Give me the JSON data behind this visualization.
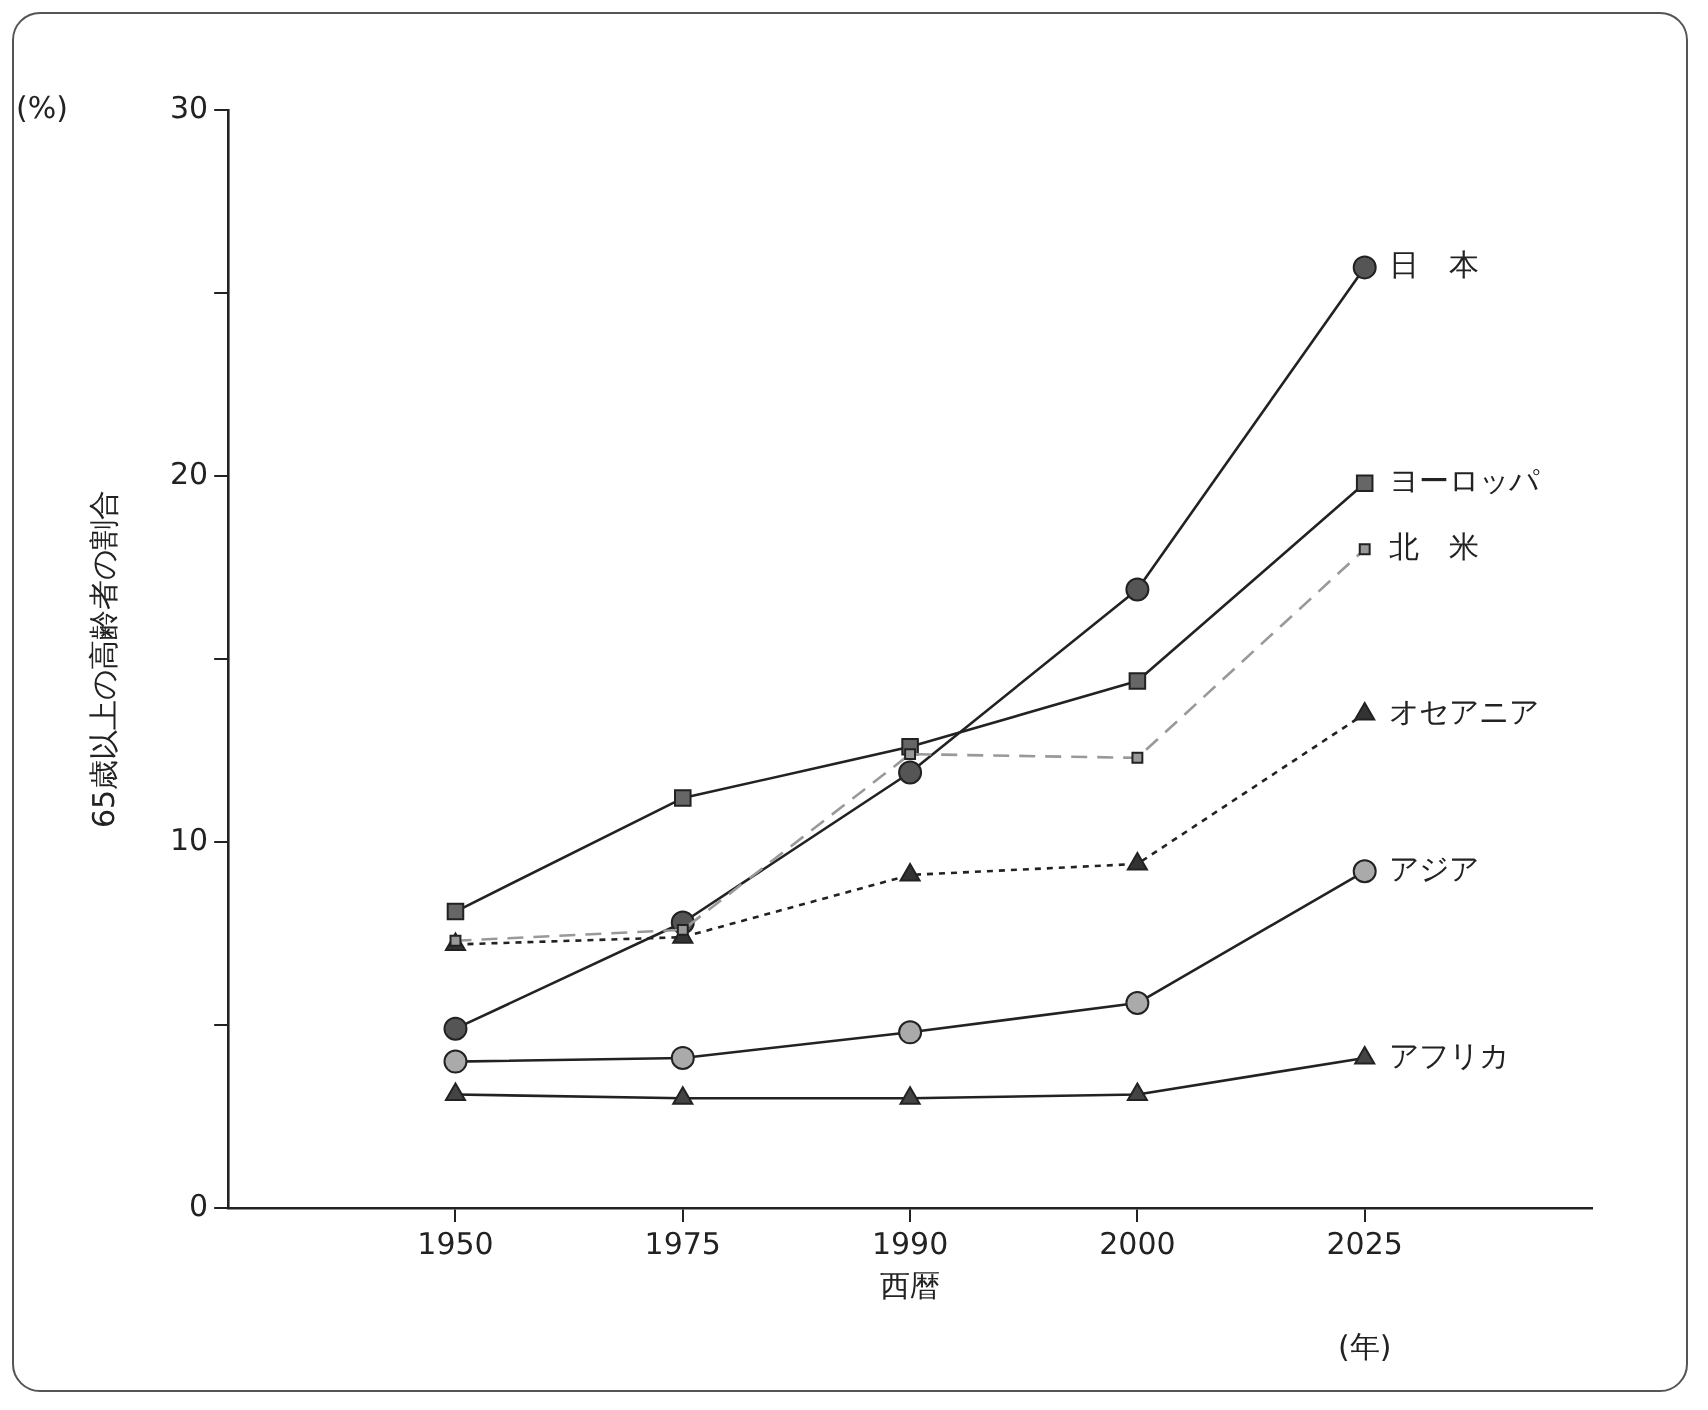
{
  "chart_data": {
    "type": "line",
    "xlabel": "西暦",
    "ylabel": "65歳以上の高齢者の割合",
    "annotations": [
      "(%)",
      "(年)"
    ],
    "categories": [
      "1950",
      "1975",
      "1990",
      "2000",
      "2025"
    ],
    "ylim": [
      0,
      30
    ],
    "yticks": [
      0,
      {
        "value": 5,
        "label": null
      },
      10,
      {
        "value": 15,
        "label": null
      },
      20,
      {
        "value": 25,
        "label": null
      },
      30
    ],
    "grid": false,
    "legend": false,
    "series": [
      {
        "name": "日　本",
        "color": "#555555",
        "marker": "circle",
        "line_style": "solid",
        "values": [
          4.9,
          7.8,
          11.9,
          16.9,
          25.7
        ]
      },
      {
        "name": "ヨーロッパ",
        "color": "#666666",
        "marker": "square",
        "line_style": "solid",
        "values": [
          8.1,
          11.2,
          12.6,
          14.4,
          19.8
        ]
      },
      {
        "name": "北　米",
        "color": "#999999",
        "marker": "square",
        "line_style": "dashed",
        "values": [
          7.3,
          7.6,
          12.4,
          12.3,
          18.0
        ]
      },
      {
        "name": "オセアニア",
        "color": "#333333",
        "marker": "triangle",
        "line_style": "dotted",
        "values": [
          7.2,
          7.4,
          9.1,
          9.4,
          13.5
        ]
      },
      {
        "name": "アジア",
        "color": "#aaaaaa",
        "marker": "circle",
        "line_style": "solid",
        "values": [
          4.0,
          4.1,
          4.8,
          5.6,
          9.2
        ]
      },
      {
        "name": "アフリカ",
        "color": "#444444",
        "marker": "triangle",
        "line_style": "solid",
        "values": [
          3.1,
          3.0,
          3.0,
          3.1,
          4.1
        ]
      }
    ]
  }
}
